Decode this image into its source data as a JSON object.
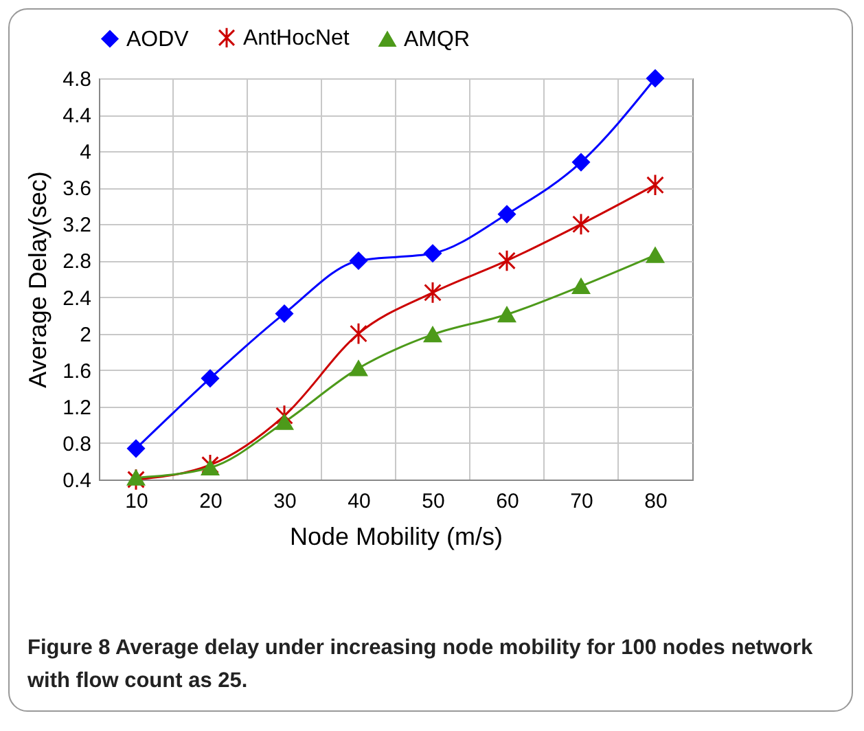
{
  "chart_data": {
    "type": "line",
    "xlabel": "Node Mobility (m/s)",
    "ylabel": "Average Delay(sec)",
    "categories": [
      "10",
      "20",
      "30",
      "40",
      "50",
      "60",
      "70",
      "80"
    ],
    "series": [
      {
        "name": "AODV",
        "color": "#0000ff",
        "marker": "diamond",
        "values": [
          0.74,
          1.51,
          2.22,
          2.8,
          2.88,
          3.31,
          3.88,
          4.8
        ]
      },
      {
        "name": "AntHocNet",
        "color": "#cc0000",
        "marker": "cross",
        "values": [
          0.4,
          0.56,
          1.1,
          2.0,
          2.45,
          2.8,
          3.2,
          3.63
        ]
      },
      {
        "name": "AMQR",
        "color": "#4d9a1a",
        "marker": "triangle",
        "values": [
          0.42,
          0.53,
          1.03,
          1.62,
          1.99,
          2.21,
          2.52,
          2.86
        ]
      }
    ],
    "ylim": [
      0.4,
      4.8
    ],
    "yticks": [
      0.4,
      0.8,
      1.2,
      1.6,
      2,
      2.4,
      2.8,
      3.2,
      3.6,
      4,
      4.4,
      4.8
    ],
    "grid": true,
    "legend": "top",
    "annotations": [
      "Figure 8 Average delay under increasing node mobility for 100 nodes network with flow count as 25."
    ]
  }
}
